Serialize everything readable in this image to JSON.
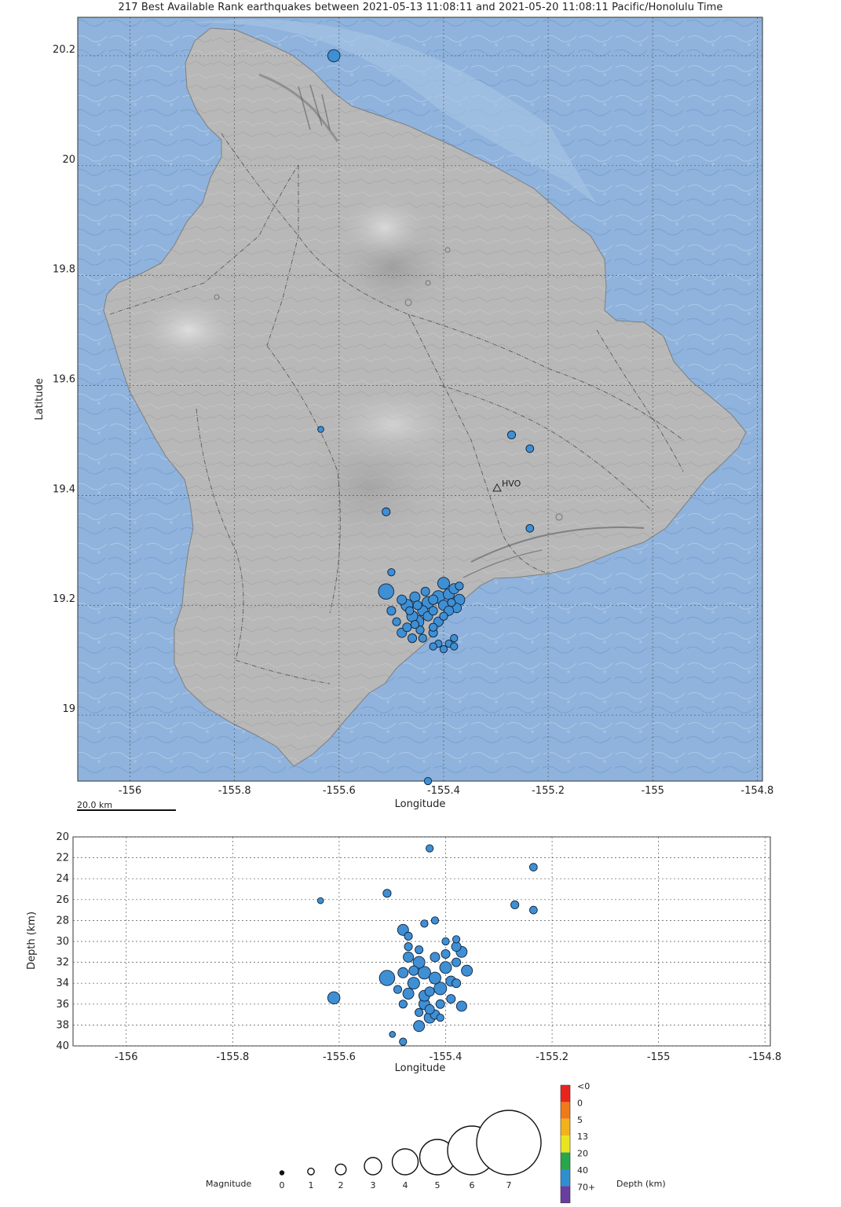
{
  "title": "217 Best Available Rank earthquakes between 2021-05-13 11:08:11 and 2021-05-20 11:08:11 Pacific/Honolulu Time",
  "map": {
    "xlabel": "Longitude",
    "ylabel": "Latitude",
    "x_ticks": [
      "-156",
      "-155.8",
      "-155.6",
      "-155.4",
      "-155.2",
      "-155",
      "-154.8"
    ],
    "y_ticks": [
      "20.2",
      "20",
      "19.8",
      "19.6",
      "19.4",
      "19.2",
      "19"
    ],
    "scale_bar_label": "20.0 km",
    "station_label": "HVO",
    "colors": {
      "ocean": "#8fb3dc",
      "land": "#b7b7b7",
      "quake": "#3f8fd4"
    }
  },
  "depth_plot": {
    "xlabel": "Longitude",
    "ylabel": "Depth (km)",
    "x_ticks": [
      "-156",
      "-155.8",
      "-155.6",
      "-155.4",
      "-155.2",
      "-155",
      "-154.8"
    ],
    "y_ticks": [
      "20",
      "22",
      "24",
      "26",
      "28",
      "30",
      "32",
      "34",
      "36",
      "38",
      "40"
    ]
  },
  "legend": {
    "magnitude_label": "Magnitude",
    "magnitudes": [
      "0",
      "1",
      "2",
      "3",
      "4",
      "5",
      "6",
      "7"
    ],
    "depth_label": "Depth (km)",
    "depth_bins": [
      "<0",
      "0",
      "5",
      "13",
      "20",
      "40",
      "70+"
    ],
    "depth_colors": [
      "#e8251d",
      "#f07a18",
      "#f2b21a",
      "#e8e51e",
      "#27a64b",
      "#2f8fd0",
      "#6a3da0"
    ]
  },
  "chart_data": [
    {
      "type": "scatter",
      "title": "217 Best Available Rank earthquakes between 2021-05-13 11:08:11 and 2021-05-20 11:08:11 Pacific/Honolulu Time",
      "xlabel": "Longitude",
      "ylabel": "Latitude",
      "xlim": [
        -156.1,
        -154.79
      ],
      "ylim": [
        18.88,
        20.27
      ],
      "grid": true,
      "points": [
        {
          "x": -155.61,
          "y": 20.2,
          "mag": 3.1
        },
        {
          "x": -155.635,
          "y": 19.52,
          "mag": 1.4
        },
        {
          "x": -155.27,
          "y": 19.51,
          "mag": 2.0
        },
        {
          "x": -155.235,
          "y": 19.485,
          "mag": 1.9
        },
        {
          "x": -155.51,
          "y": 19.37,
          "mag": 2.0
        },
        {
          "x": -155.235,
          "y": 19.34,
          "mag": 1.9
        },
        {
          "x": -155.5,
          "y": 19.26,
          "mag": 1.8
        },
        {
          "x": -155.51,
          "y": 19.225,
          "mag": 3.8
        },
        {
          "x": -155.43,
          "y": 18.88,
          "mag": 1.8
        },
        {
          "x": -155.47,
          "y": 19.2,
          "mag": 3.0
        },
        {
          "x": -155.46,
          "y": 19.18,
          "mag": 2.8
        },
        {
          "x": -155.45,
          "y": 19.17,
          "mag": 3.2
        },
        {
          "x": -155.44,
          "y": 19.19,
          "mag": 2.6
        },
        {
          "x": -155.43,
          "y": 19.205,
          "mag": 3.0
        },
        {
          "x": -155.42,
          "y": 19.21,
          "mag": 2.4
        },
        {
          "x": -155.41,
          "y": 19.215,
          "mag": 3.2
        },
        {
          "x": -155.4,
          "y": 19.24,
          "mag": 3.0
        },
        {
          "x": -155.39,
          "y": 19.22,
          "mag": 2.8
        },
        {
          "x": -155.38,
          "y": 19.23,
          "mag": 2.6
        },
        {
          "x": -155.37,
          "y": 19.21,
          "mag": 2.8
        },
        {
          "x": -155.375,
          "y": 19.195,
          "mag": 2.4
        },
        {
          "x": -155.41,
          "y": 19.17,
          "mag": 2.4
        },
        {
          "x": -155.42,
          "y": 19.15,
          "mag": 2.2
        },
        {
          "x": -155.44,
          "y": 19.14,
          "mag": 2.0
        },
        {
          "x": -155.46,
          "y": 19.14,
          "mag": 2.2
        },
        {
          "x": -155.48,
          "y": 19.15,
          "mag": 2.4
        },
        {
          "x": -155.49,
          "y": 19.17,
          "mag": 2.0
        },
        {
          "x": -155.5,
          "y": 19.19,
          "mag": 2.2
        },
        {
          "x": -155.48,
          "y": 19.21,
          "mag": 2.4
        },
        {
          "x": -155.455,
          "y": 19.215,
          "mag": 2.6
        },
        {
          "x": -155.435,
          "y": 19.225,
          "mag": 2.2
        },
        {
          "x": -155.4,
          "y": 19.2,
          "mag": 2.6
        },
        {
          "x": -155.39,
          "y": 19.19,
          "mag": 2.4
        },
        {
          "x": -155.43,
          "y": 19.18,
          "mag": 2.4
        },
        {
          "x": -155.45,
          "y": 19.2,
          "mag": 2.2
        },
        {
          "x": -155.47,
          "y": 19.16,
          "mag": 2.2
        },
        {
          "x": -155.42,
          "y": 19.16,
          "mag": 2.0
        },
        {
          "x": -155.41,
          "y": 19.13,
          "mag": 1.8
        },
        {
          "x": -155.4,
          "y": 19.12,
          "mag": 1.8
        },
        {
          "x": -155.39,
          "y": 19.13,
          "mag": 1.8
        },
        {
          "x": -155.38,
          "y": 19.14,
          "mag": 1.8
        },
        {
          "x": -155.38,
          "y": 19.125,
          "mag": 1.8
        },
        {
          "x": -155.42,
          "y": 19.125,
          "mag": 1.8
        },
        {
          "x": -155.37,
          "y": 19.235,
          "mag": 2.0
        },
        {
          "x": -155.385,
          "y": 19.205,
          "mag": 2.0
        },
        {
          "x": -155.465,
          "y": 19.19,
          "mag": 2.0
        },
        {
          "x": -155.445,
          "y": 19.155,
          "mag": 2.0
        },
        {
          "x": -155.42,
          "y": 19.19,
          "mag": 2.2
        },
        {
          "x": -155.4,
          "y": 19.18,
          "mag": 2.0
        },
        {
          "x": -155.455,
          "y": 19.165,
          "mag": 2.0
        }
      ]
    },
    {
      "type": "scatter",
      "xlabel": "Longitude",
      "ylabel": "Depth (km)",
      "xlim": [
        -156.1,
        -154.79
      ],
      "ylim": [
        40,
        20
      ],
      "grid": true,
      "points": [
        {
          "x": -155.43,
          "y": 21.1,
          "mag": 1.8
        },
        {
          "x": -155.235,
          "y": 22.9,
          "mag": 1.9
        },
        {
          "x": -155.51,
          "y": 25.4,
          "mag": 2.0
        },
        {
          "x": -155.635,
          "y": 26.1,
          "mag": 1.4
        },
        {
          "x": -155.27,
          "y": 26.5,
          "mag": 2.0
        },
        {
          "x": -155.235,
          "y": 27.0,
          "mag": 1.9
        },
        {
          "x": -155.61,
          "y": 35.4,
          "mag": 3.1
        },
        {
          "x": -155.51,
          "y": 33.5,
          "mag": 3.8
        },
        {
          "x": -155.5,
          "y": 38.9,
          "mag": 1.4
        },
        {
          "x": -155.48,
          "y": 39.6,
          "mag": 1.8
        },
        {
          "x": -155.42,
          "y": 28.0,
          "mag": 1.8
        },
        {
          "x": -155.44,
          "y": 28.3,
          "mag": 1.8
        },
        {
          "x": -155.48,
          "y": 28.9,
          "mag": 2.8
        },
        {
          "x": -155.47,
          "y": 29.5,
          "mag": 2.0
        },
        {
          "x": -155.4,
          "y": 30.0,
          "mag": 1.8
        },
        {
          "x": -155.38,
          "y": 29.8,
          "mag": 1.8
        },
        {
          "x": -155.37,
          "y": 31.0,
          "mag": 2.8
        },
        {
          "x": -155.38,
          "y": 30.5,
          "mag": 2.4
        },
        {
          "x": -155.36,
          "y": 32.8,
          "mag": 2.8
        },
        {
          "x": -155.38,
          "y": 34.0,
          "mag": 2.2
        },
        {
          "x": -155.37,
          "y": 36.2,
          "mag": 2.6
        },
        {
          "x": -155.44,
          "y": 36.0,
          "mag": 2.8
        },
        {
          "x": -155.43,
          "y": 37.3,
          "mag": 2.8
        },
        {
          "x": -155.45,
          "y": 38.1,
          "mag": 2.8
        },
        {
          "x": -155.42,
          "y": 37.0,
          "mag": 2.4
        },
        {
          "x": -155.41,
          "y": 37.3,
          "mag": 1.8
        },
        {
          "x": -155.47,
          "y": 31.5,
          "mag": 2.6
        },
        {
          "x": -155.45,
          "y": 32.0,
          "mag": 3.0
        },
        {
          "x": -155.44,
          "y": 33.0,
          "mag": 3.2
        },
        {
          "x": -155.42,
          "y": 33.5,
          "mag": 3.0
        },
        {
          "x": -155.41,
          "y": 34.5,
          "mag": 3.2
        },
        {
          "x": -155.4,
          "y": 32.5,
          "mag": 3.0
        },
        {
          "x": -155.39,
          "y": 33.8,
          "mag": 2.6
        },
        {
          "x": -155.46,
          "y": 34.0,
          "mag": 3.0
        },
        {
          "x": -155.48,
          "y": 33.0,
          "mag": 2.6
        },
        {
          "x": -155.47,
          "y": 35.0,
          "mag": 2.8
        },
        {
          "x": -155.44,
          "y": 35.2,
          "mag": 2.8
        },
        {
          "x": -155.43,
          "y": 34.8,
          "mag": 2.4
        },
        {
          "x": -155.46,
          "y": 32.8,
          "mag": 2.4
        },
        {
          "x": -155.42,
          "y": 31.5,
          "mag": 2.4
        },
        {
          "x": -155.4,
          "y": 31.2,
          "mag": 2.2
        },
        {
          "x": -155.38,
          "y": 32.0,
          "mag": 2.2
        },
        {
          "x": -155.45,
          "y": 30.8,
          "mag": 2.0
        },
        {
          "x": -155.47,
          "y": 30.5,
          "mag": 2.0
        },
        {
          "x": -155.43,
          "y": 36.5,
          "mag": 2.4
        },
        {
          "x": -155.41,
          "y": 36.0,
          "mag": 2.2
        },
        {
          "x": -155.39,
          "y": 35.5,
          "mag": 2.2
        },
        {
          "x": -155.45,
          "y": 36.8,
          "mag": 2.0
        },
        {
          "x": -155.48,
          "y": 36.0,
          "mag": 2.0
        },
        {
          "x": -155.49,
          "y": 34.6,
          "mag": 2.0
        }
      ]
    }
  ]
}
